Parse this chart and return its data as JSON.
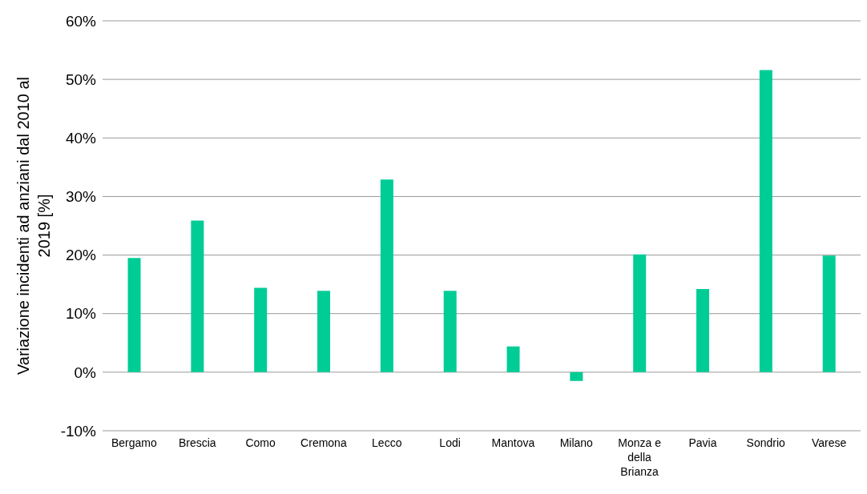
{
  "chart_data": {
    "type": "bar",
    "ylabel": "Variazione incidenti ad anziani dal 2010 al 2019 [%]",
    "categories": [
      "Bergamo",
      "Brescia",
      "Como",
      "Cremona",
      "Lecco",
      "Lodi",
      "Mantova",
      "Milano",
      "Monza e della Brianza",
      "Pavia",
      "Sondrio",
      "Varese"
    ],
    "values": [
      19.5,
      25.9,
      14.4,
      13.9,
      32.9,
      13.9,
      4.4,
      -1.5,
      20.1,
      14.2,
      51.6,
      19.9
    ],
    "color": "#00cc96",
    "ylim": [
      -10,
      60
    ],
    "yticks": [
      {
        "value": -10,
        "label": "-10%"
      },
      {
        "value": 0,
        "label": "0%"
      },
      {
        "value": 10,
        "label": "10%"
      },
      {
        "value": 20,
        "label": "20%"
      },
      {
        "value": 30,
        "label": "30%"
      },
      {
        "value": 40,
        "label": "40%"
      },
      {
        "value": 50,
        "label": "50%"
      },
      {
        "value": 60,
        "label": "60%"
      }
    ],
    "grid": "y"
  }
}
